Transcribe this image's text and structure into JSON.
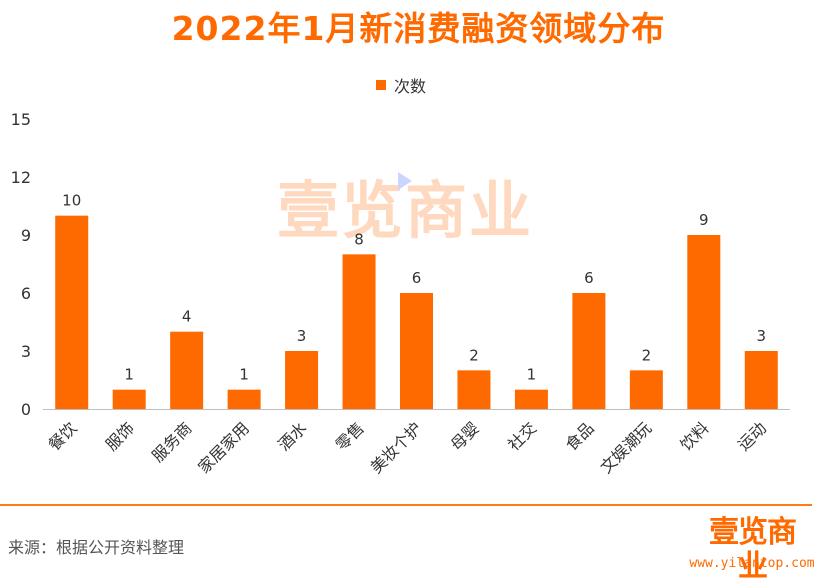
{
  "chart_data": {
    "type": "bar",
    "title": "2022年1月新消费融资领域分布",
    "categories": [
      "餐饮",
      "服饰",
      "服务商",
      "家居家用",
      "酒水",
      "零售",
      "美妆个护",
      "母婴",
      "社交",
      "食品",
      "文娱潮玩",
      "饮料",
      "运动"
    ],
    "series": [
      {
        "name": "次数",
        "values": [
          10,
          1,
          4,
          1,
          3,
          8,
          6,
          2,
          1,
          6,
          2,
          9,
          3
        ]
      }
    ],
    "ylim": [
      0,
      15
    ],
    "yticks": [
      0,
      3,
      6,
      9,
      12,
      15
    ],
    "grid": false,
    "legend": "top-center",
    "bar_color": "#ff6a00",
    "data_labels": true
  },
  "watermark": {
    "text": "壹览商业"
  },
  "footer": {
    "source": "来源：根据公开资料整理",
    "logo_text": "壹览商业",
    "url": "www.yilantop.com"
  },
  "colors": {
    "accent": "#ff6a00",
    "watermark": "#ffd9bf"
  }
}
